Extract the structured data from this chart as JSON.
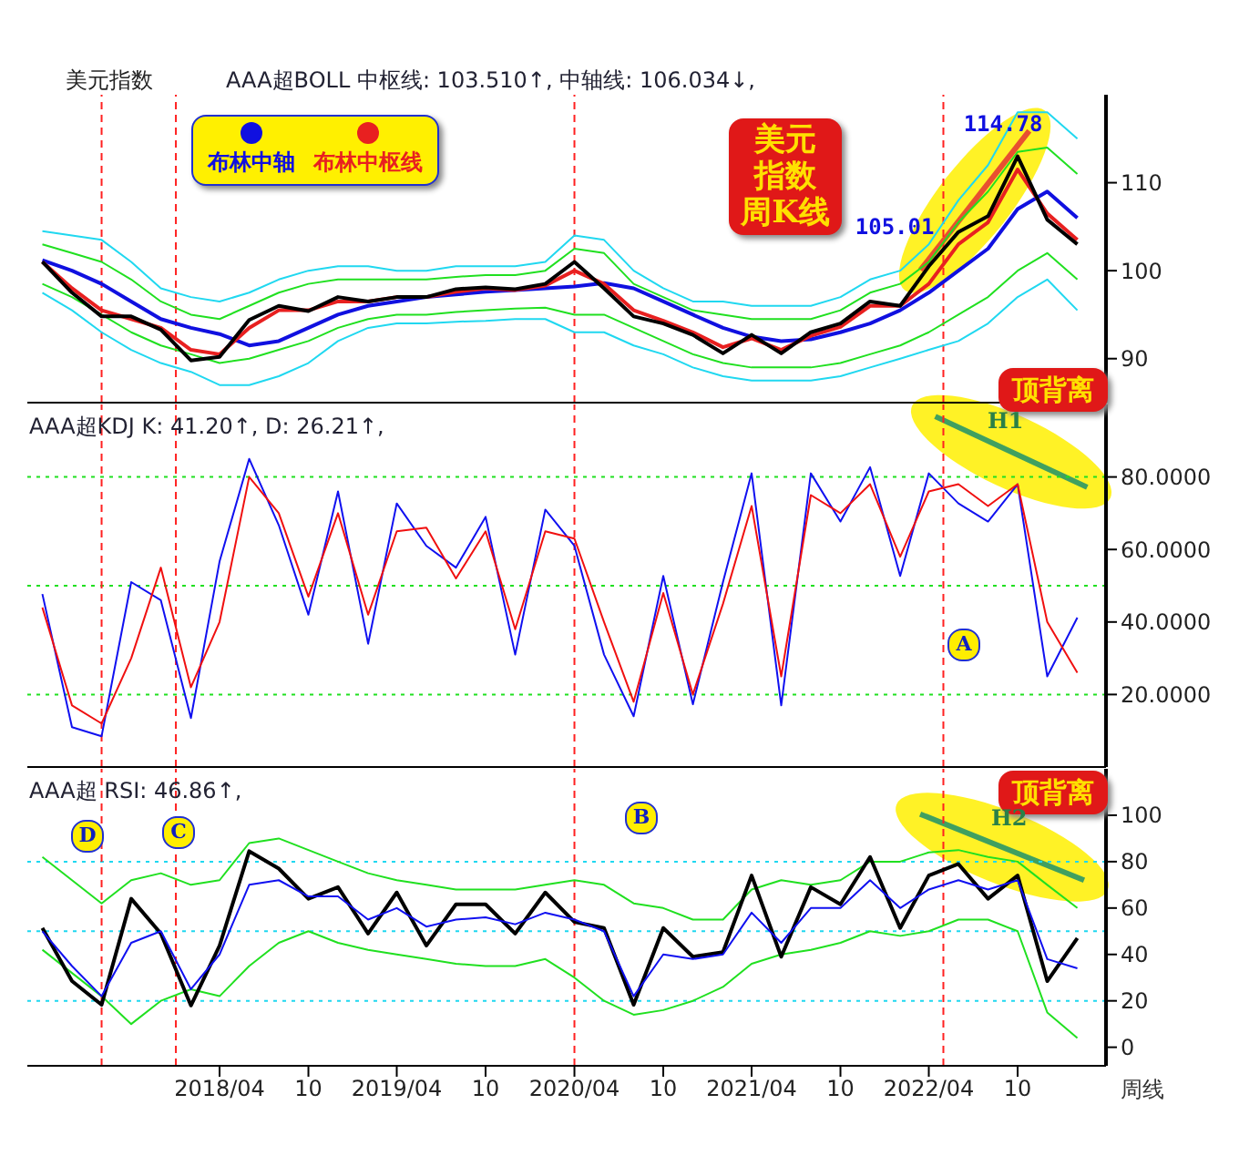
{
  "chart_data": [
    {
      "type": "line",
      "title": "美元指数",
      "subtitle": "AAA超BOLL 中枢线: 103.510↑, 中轴线: 106.034↓,",
      "x": [
        "2017-04",
        "2017-06",
        "2017-08",
        "2017-10",
        "2017-12",
        "2018-02",
        "2018-04",
        "2018-06",
        "2018-08",
        "2018-10",
        "2018-12",
        "2019-02",
        "2019-04",
        "2019-06",
        "2019-08",
        "2019-10",
        "2019-12",
        "2020-02",
        "2020-04",
        "2020-06",
        "2020-08",
        "2020-10",
        "2020-12",
        "2021-02",
        "2021-04",
        "2021-06",
        "2021-08",
        "2021-10",
        "2021-12",
        "2022-02",
        "2022-04",
        "2022-06",
        "2022-08",
        "2022-10",
        "2022-12",
        "2023-02"
      ],
      "series": [
        {
          "color": "#20d8f0",
          "values": [
            104.5,
            104,
            103.5,
            101,
            98,
            97,
            96.5,
            97.5,
            99,
            100,
            100.5,
            100.5,
            100,
            100,
            100.5,
            100.5,
            100.5,
            101,
            104,
            103.5,
            100,
            98,
            96.5,
            96.5,
            96,
            96,
            96,
            97,
            99,
            100,
            103,
            108,
            112,
            118,
            118,
            115
          ]
        },
        {
          "color": "#20e020",
          "values": [
            103,
            102,
            101,
            99,
            96.5,
            95,
            94.5,
            96,
            97.5,
            98.5,
            99,
            99,
            99,
            99,
            99.3,
            99.5,
            99.5,
            100,
            102.5,
            102,
            98.5,
            97,
            95.5,
            95,
            94.5,
            94.5,
            94.5,
            95.5,
            97.5,
            98.5,
            101,
            105.5,
            109,
            113.5,
            114,
            111
          ]
        },
        {
          "color": "#20e020",
          "values": [
            98.5,
            97,
            95,
            93,
            91.5,
            90.5,
            89.5,
            90,
            91,
            92,
            93.5,
            94.5,
            95,
            95,
            95.3,
            95.5,
            95.7,
            95.8,
            95,
            95,
            93.5,
            92,
            90.5,
            89.5,
            89,
            89,
            89,
            89.5,
            90.5,
            91.5,
            93,
            95,
            97,
            100,
            102,
            99
          ]
        },
        {
          "color": "#20d8f0",
          "values": [
            97.5,
            95.5,
            93,
            91,
            89.5,
            88.5,
            87,
            87,
            88,
            89.5,
            92,
            93.5,
            94,
            94,
            94.2,
            94.3,
            94.5,
            94.5,
            93,
            93,
            91.5,
            90.5,
            89,
            88,
            87.5,
            87.5,
            87.5,
            88,
            89,
            90,
            91,
            92,
            94,
            97,
            99,
            95.5
          ]
        },
        {
          "name": "布林中轴",
          "color": "#1010e0",
          "values": [
            101.2,
            100,
            98.5,
            96.5,
            94.5,
            93.5,
            92.8,
            91.5,
            92,
            93.5,
            95,
            96,
            96.5,
            97,
            97.3,
            97.6,
            97.8,
            98,
            98.2,
            98.6,
            98,
            96.5,
            95,
            93.5,
            92.5,
            92,
            92.2,
            93,
            94,
            95.5,
            97.5,
            100,
            102.5,
            107,
            109,
            106
          ]
        },
        {
          "name": "布林中枢线",
          "color": "#e82020",
          "values": [
            101,
            98,
            95.5,
            94.5,
            93.5,
            91,
            90.5,
            93.5,
            95.5,
            95.5,
            96.5,
            96.5,
            97,
            97,
            97.6,
            98,
            97.8,
            98.3,
            100,
            98.5,
            95.5,
            94.3,
            93,
            91.3,
            92.3,
            91,
            92.6,
            93.6,
            96,
            96,
            98.5,
            103,
            105.5,
            111.5,
            106.5,
            103.5
          ]
        },
        {
          "color": "#000000",
          "values": [
            101,
            97.5,
            94.8,
            94.8,
            93.3,
            89.8,
            90.2,
            94.4,
            96,
            95.4,
            97,
            96.5,
            97,
            97,
            97.9,
            98.1,
            97.9,
            98.5,
            101,
            98,
            94.8,
            94,
            92.7,
            90.6,
            92.7,
            90.6,
            93,
            94,
            96.5,
            96,
            100.5,
            104.4,
            106.2,
            113,
            105.8,
            103
          ]
        }
      ],
      "xlim": [
        "2017-03",
        "2023-04"
      ],
      "ylim": [
        85,
        120
      ],
      "yticks": [
        90,
        100,
        110
      ],
      "tick_labels": "y",
      "legend": "top left",
      "marker": "none",
      "ref_lines": [
        {
          "axis": "x",
          "value": "2017-08",
          "color": "#ff2020",
          "line_style": "dashed"
        },
        {
          "axis": "x",
          "value": "2018-01",
          "color": "#ff2020",
          "line_style": "dashed"
        },
        {
          "axis": "x",
          "value": "2020-04",
          "color": "#ff2020",
          "line_style": "dashed"
        },
        {
          "axis": "x",
          "value": "2022-05",
          "color": "#ff2020",
          "line_style": "dashed"
        }
      ],
      "annotations": [
        "美元指数周K线",
        {
          "text": "105.01",
          "x": "2022-05",
          "y": 105.01
        },
        {
          "text": "114.78",
          "x": "2022-09",
          "y": 114.78
        }
      ]
    },
    {
      "type": "line",
      "subtitle": "AAA超KDJ K: 41.20↑, D: 26.21↑,",
      "x": [
        "2017-04",
        "2017-06",
        "2017-08",
        "2017-10",
        "2017-12",
        "2018-02",
        "2018-04",
        "2018-06",
        "2018-08",
        "2018-10",
        "2018-12",
        "2019-02",
        "2019-04",
        "2019-06",
        "2019-08",
        "2019-10",
        "2019-12",
        "2020-02",
        "2020-04",
        "2020-06",
        "2020-08",
        "2020-10",
        "2020-12",
        "2021-02",
        "2021-04",
        "2021-06",
        "2021-08",
        "2021-10",
        "2021-12",
        "2022-02",
        "2022-04",
        "2022-06",
        "2022-08",
        "2022-10",
        "2022-12",
        "2023-02"
      ],
      "series": [
        {
          "color": "#1010f0",
          "values": [
            47.7,
            11,
            8.5,
            51,
            46,
            13.5,
            56.7,
            85,
            66.7,
            42,
            76,
            34,
            72.7,
            61,
            55,
            69,
            31,
            71,
            61,
            31,
            14,
            52.7,
            17.3,
            51,
            81,
            17,
            81,
            67.7,
            82.7,
            52.7,
            81,
            72.7,
            67.7,
            78,
            25,
            41.2
          ]
        },
        {
          "color": "#f01010",
          "values": [
            44,
            17,
            12,
            30,
            55,
            22,
            40,
            80,
            70,
            47,
            70,
            42,
            65,
            66,
            52,
            65,
            38,
            65,
            63,
            40,
            18,
            48,
            20,
            45,
            72,
            25,
            75,
            70,
            78,
            58,
            76,
            78,
            72,
            78,
            40,
            26
          ]
        }
      ],
      "xlim": [
        "2017-03",
        "2023-04"
      ],
      "ylim": [
        0,
        100
      ],
      "yticks": [
        {
          "value": 20,
          "label": "20.0000"
        },
        {
          "value": 40,
          "label": "40.0000"
        },
        {
          "value": 60,
          "label": "60.0000"
        },
        {
          "value": 80,
          "label": "80.0000"
        }
      ],
      "tick_labels": "y",
      "marker": "none",
      "ref_lines": [
        {
          "axis": "y",
          "value": 20,
          "color": "#20e020",
          "line_style": "dotted"
        },
        {
          "axis": "y",
          "value": 50,
          "color": "#20e020",
          "line_style": "dotted"
        },
        {
          "axis": "y",
          "value": 80,
          "color": "#20e020",
          "line_style": "dotted"
        },
        {
          "axis": "x",
          "value": "2017-08",
          "color": "#ff2020",
          "line_style": "dashed"
        },
        {
          "axis": "x",
          "value": "2018-01",
          "color": "#ff2020",
          "line_style": "dashed"
        },
        {
          "axis": "x",
          "value": "2020-04",
          "color": "#ff2020",
          "line_style": "dashed"
        },
        {
          "axis": "x",
          "value": "2022-05",
          "color": "#ff2020",
          "line_style": "dashed"
        }
      ],
      "annotations": [
        "顶背离",
        "H1",
        "A"
      ]
    },
    {
      "type": "line",
      "subtitle": "AAA超 RSI: 46.86↑,",
      "x": [
        "2017-04",
        "2017-06",
        "2017-08",
        "2017-10",
        "2017-12",
        "2018-02",
        "2018-04",
        "2018-06",
        "2018-08",
        "2018-10",
        "2018-12",
        "2019-02",
        "2019-04",
        "2019-06",
        "2019-08",
        "2019-10",
        "2019-12",
        "2020-02",
        "2020-04",
        "2020-06",
        "2020-08",
        "2020-10",
        "2020-12",
        "2021-02",
        "2021-04",
        "2021-06",
        "2021-08",
        "2021-10",
        "2021-12",
        "2022-02",
        "2022-04",
        "2022-06",
        "2022-08",
        "2022-10",
        "2022-12",
        "2023-02"
      ],
      "series": [
        {
          "color": "#20e020",
          "values": [
            82,
            72,
            62,
            72,
            75,
            70,
            72,
            88,
            90,
            85,
            80,
            75,
            72,
            70,
            68,
            68,
            68,
            70,
            72,
            70,
            62,
            60,
            55,
            55,
            68,
            72,
            70,
            72,
            80,
            80,
            84,
            85,
            82,
            80,
            70,
            60
          ]
        },
        {
          "color": "#20e020",
          "values": [
            42,
            32,
            22,
            10,
            20,
            25,
            22,
            35,
            45,
            50,
            45,
            42,
            40,
            38,
            36,
            35,
            35,
            38,
            30,
            20,
            14,
            16,
            20,
            26,
            36,
            40,
            42,
            45,
            50,
            48,
            50,
            55,
            55,
            50,
            15,
            4
          ]
        },
        {
          "color": "#000000",
          "values": [
            51.4,
            28.5,
            18.3,
            64,
            49,
            18,
            43.8,
            84.5,
            77,
            64,
            69,
            49,
            66.7,
            43.8,
            61.6,
            61.6,
            49,
            66.7,
            54,
            51.4,
            18.3,
            51.4,
            39,
            41,
            74,
            39,
            69,
            61.6,
            82,
            51.4,
            74,
            79,
            64,
            74,
            28.5,
            47
          ]
        },
        {
          "color": "#1010f0",
          "values": [
            50,
            35,
            22,
            45,
            50,
            25,
            40,
            70,
            72,
            65,
            65,
            55,
            60,
            52,
            55,
            56,
            53,
            58,
            55,
            50,
            22,
            40,
            38,
            40,
            58,
            45,
            60,
            60,
            72,
            60,
            68,
            72,
            68,
            72,
            38,
            34
          ]
        }
      ],
      "xlim": [
        "2017-03",
        "2023-04"
      ],
      "ylim": [
        -8,
        120
      ],
      "yticks": [
        0,
        20,
        40,
        60,
        80,
        100
      ],
      "xticks": [
        {
          "value": "2018-04",
          "label": "2018/04"
        },
        {
          "value": "2018-10",
          "label": "10"
        },
        {
          "value": "2019-04",
          "label": "2019/04"
        },
        {
          "value": "2019-10",
          "label": "10"
        },
        {
          "value": "2020-04",
          "label": "2020/04"
        },
        {
          "value": "2020-10",
          "label": "10"
        },
        {
          "value": "2021-04",
          "label": "2021/04"
        },
        {
          "value": "2021-10",
          "label": "10"
        },
        {
          "value": "2022-04",
          "label": "2022/04"
        },
        {
          "value": "2022-10",
          "label": "10"
        }
      ],
      "marker": "none",
      "ref_lines": [
        {
          "axis": "y",
          "value": 20,
          "color": "#20d8f0",
          "line_style": "dotted"
        },
        {
          "axis": "y",
          "value": 50,
          "color": "#20d8f0",
          "line_style": "dotted"
        },
        {
          "axis": "y",
          "value": 80,
          "color": "#20d8f0",
          "line_style": "dotted"
        },
        {
          "axis": "x",
          "value": "2017-08",
          "color": "#ff2020",
          "line_style": "dashed"
        },
        {
          "axis": "x",
          "value": "2018-01",
          "color": "#ff2020",
          "line_style": "dashed"
        },
        {
          "axis": "x",
          "value": "2020-04",
          "color": "#ff2020",
          "line_style": "dashed"
        },
        {
          "axis": "x",
          "value": "2022-05",
          "color": "#ff2020",
          "line_style": "dashed"
        }
      ],
      "annotations": [
        "顶背离",
        "H2",
        "B",
        "C",
        "D",
        "周线"
      ]
    }
  ]
}
